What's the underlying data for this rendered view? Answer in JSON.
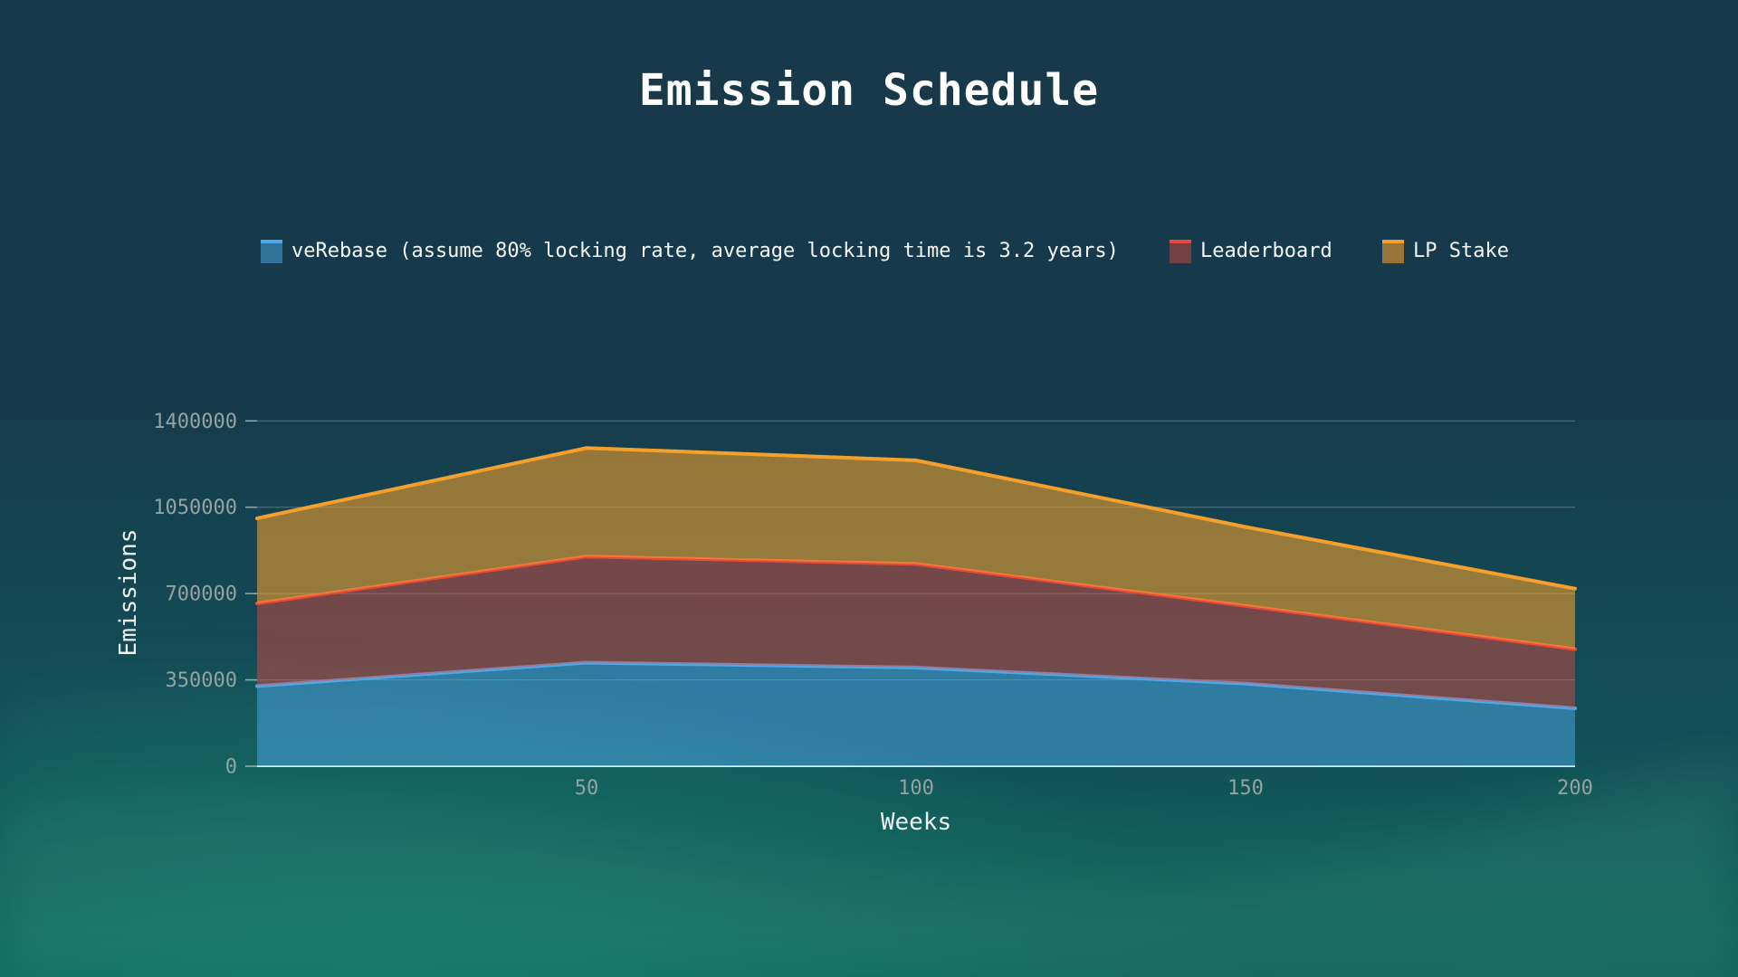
{
  "title": "Emission Schedule",
  "legend": {
    "items": [
      {
        "label": "veRebase (assume 80% locking rate, average locking time is 3.2 years)",
        "color": "#4da9ec",
        "fill": "rgba(77,169,236,0.50)"
      },
      {
        "label": "Leaderboard",
        "color": "#e8493f",
        "fill": "rgba(232,73,63,0.45)"
      },
      {
        "label": "LP Stake",
        "color": "#f5a02b",
        "fill": "rgba(245,160,43,0.58)"
      }
    ]
  },
  "chart_data": {
    "type": "area",
    "stacked": true,
    "title": "Emission Schedule",
    "xlabel": "Weeks",
    "ylabel": "Emissions",
    "x": [
      1,
      50,
      100,
      150,
      200
    ],
    "x_tick_labels": [
      "50",
      "100",
      "150",
      "200"
    ],
    "y_tick_labels": [
      "0",
      "350000",
      "700000",
      "1050000",
      "1400000"
    ],
    "y_tick_values": [
      0,
      350000,
      700000,
      1050000,
      1400000
    ],
    "ylim": [
      0,
      1400000
    ],
    "grid": "horizontal",
    "legend_position": "top",
    "series": [
      {
        "name": "veRebase (assume 80% locking rate, average locking time is 3.2 years)",
        "color": "#4da9ec",
        "values": [
          325000,
          420000,
          400000,
          335000,
          235000
        ]
      },
      {
        "name": "Leaderboard",
        "color": "#e8493f",
        "values": [
          335000,
          430000,
          420000,
          315000,
          240000
        ]
      },
      {
        "name": "LP Stake",
        "color": "#f5a02b",
        "values": [
          345000,
          440000,
          420000,
          320000,
          245000
        ]
      }
    ],
    "stacked_totals": [
      1005000,
      1290000,
      1240000,
      970000,
      720000
    ]
  },
  "colors": {
    "background_top": "#17384a",
    "background_bottom": "#0d6a60",
    "gridline": "rgba(255,255,255,0.28)",
    "axis_line": "rgba(255,255,255,0.9)",
    "tick_label": "#93a2a3",
    "axis_title": "#eef3f2",
    "title": "#ffffff"
  }
}
